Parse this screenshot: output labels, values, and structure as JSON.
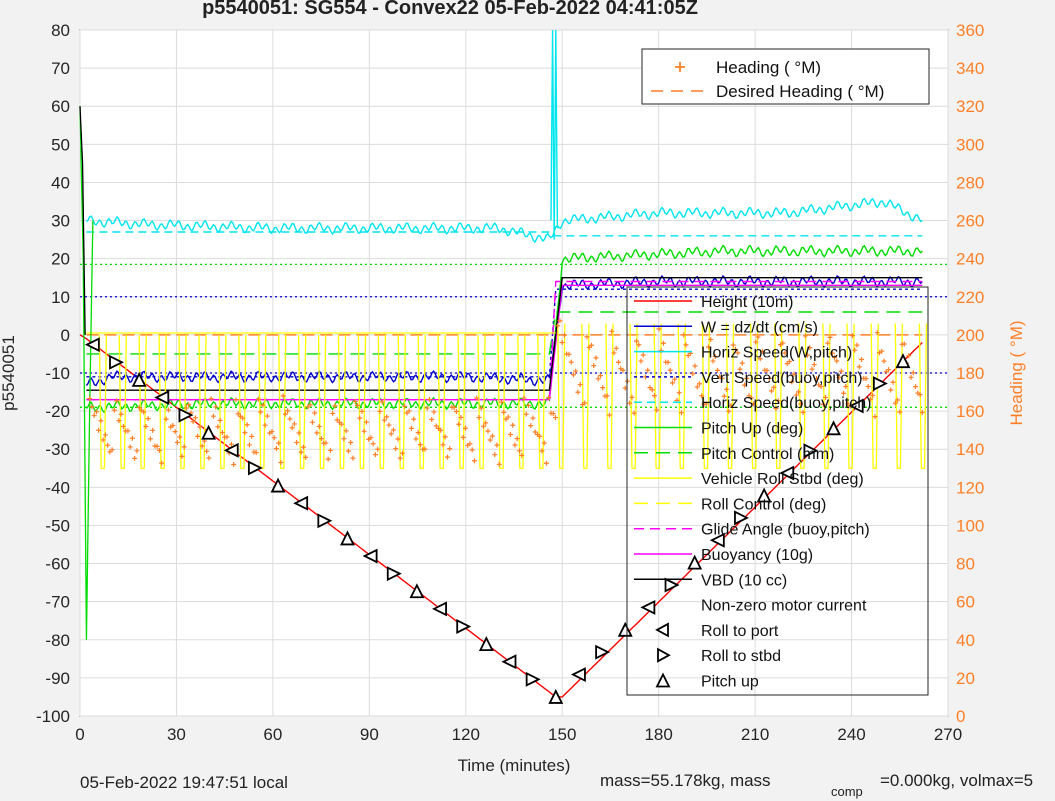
{
  "title": "p5540051: SG554 - Convex22 05-Feb-2022 04:41:05Z",
  "footer": {
    "local_time": "05-Feb-2022 19:47:51 local",
    "mass": "mass=55.178kg, mass",
    "mass_sub": "comp",
    "mass_rest": "=0.000kg, volmax=5"
  },
  "chart_data": {
    "type": "line",
    "xlabel": "Time (minutes)",
    "ylabel": "p5540051",
    "y2label": "Heading ( °M)",
    "xlim": [
      0,
      270
    ],
    "ylim": [
      -100,
      80
    ],
    "y2lim": [
      0,
      360
    ],
    "xticks": [
      0,
      30,
      60,
      90,
      120,
      150,
      180,
      210,
      240,
      270
    ],
    "yticks": [
      80,
      70,
      60,
      50,
      40,
      30,
      20,
      10,
      0,
      -10,
      -20,
      -30,
      -40,
      -50,
      -60,
      -70,
      -80,
      -90,
      -100
    ],
    "y2ticks": [
      360,
      340,
      320,
      300,
      280,
      260,
      240,
      220,
      200,
      180,
      160,
      140,
      120,
      100,
      80,
      60,
      40,
      20,
      0
    ],
    "grid": true,
    "colors": {
      "height": "#ff0000",
      "w": "#0000cc",
      "horiz_speed": "#00e5ee",
      "pitch": "#00dd00",
      "roll": "#ffff00",
      "glide": "#ff00ff",
      "vbd": "#000000",
      "heading": "#ff7f27",
      "axis_right": "#ff7f27"
    },
    "legend_top": {
      "position": "top-right",
      "entries": [
        "Heading ( °M)",
        "Desired Heading ( °M)"
      ]
    },
    "legend_main": {
      "position": "right",
      "entries": [
        "Height (10m)",
        "W = dz/dt (cm/s)",
        "Horiz Speed(W,pitch)",
        "Vert Speed(buoy,pitch)",
        "Horiz Speed(buoy,pitch)",
        "Pitch Up (deg)",
        "Pitch Control (mm)",
        "Vehicle Roll Stbd (deg)",
        "Roll Control (deg)",
        "Glide Angle (buoy,pitch)",
        "Buoyancy (10g)",
        "VBD (10 cc)",
        "Non-zero motor current",
        "Roll to port",
        "Roll to stbd",
        "Pitch up"
      ]
    },
    "series": [
      {
        "name": "Height (10m)",
        "x": [
          0,
          2,
          148,
          150,
          262
        ],
        "y": [
          0,
          -1,
          -95,
          -95,
          -2
        ]
      },
      {
        "name": "W = dz/dt (cm/s)",
        "x": [
          2,
          10,
          40,
          80,
          120,
          146,
          150,
          180,
          220,
          262
        ],
        "y": [
          -13,
          -11,
          -11,
          -11,
          -11,
          -12,
          13,
          14,
          14,
          14
        ]
      },
      {
        "name": "Horiz Speed(W,pitch)",
        "x": [
          2,
          20,
          60,
          100,
          130,
          146,
          150,
          180,
          220,
          250,
          262
        ],
        "y": [
          30,
          29,
          28,
          28,
          28,
          25,
          30,
          32,
          32,
          35,
          30
        ]
      },
      {
        "name": "Vert Speed(buoy,pitch)",
        "x": [
          2,
          146,
          148,
          262
        ],
        "y": [
          -11,
          -11,
          12,
          12
        ]
      },
      {
        "name": "Horiz Speed(buoy,pitch)",
        "x": [
          2,
          146,
          148,
          262
        ],
        "y": [
          27,
          27,
          26,
          26
        ]
      },
      {
        "name": "Pitch Up (deg)",
        "x": [
          2,
          40,
          100,
          146,
          150,
          200,
          262
        ],
        "y": [
          -19,
          -18,
          -18,
          -18,
          20,
          22,
          22
        ]
      },
      {
        "name": "Pitch Control (mm)",
        "x": [
          2,
          146,
          148,
          262
        ],
        "y": [
          -5,
          -5,
          6,
          6
        ]
      },
      {
        "name": "Glide Angle (buoy,pitch)",
        "x": [
          2,
          146,
          148,
          262
        ],
        "y": [
          -17,
          -17,
          14,
          14
        ]
      },
      {
        "name": "Buoyancy (10g)",
        "x": [
          2,
          146,
          150,
          262
        ],
        "y": [
          -17,
          -17,
          13,
          13
        ]
      },
      {
        "name": "VBD (10 cc)",
        "x": [
          2,
          146,
          150,
          262
        ],
        "y": [
          -14.5,
          -14.5,
          15,
          15
        ]
      }
    ]
  }
}
